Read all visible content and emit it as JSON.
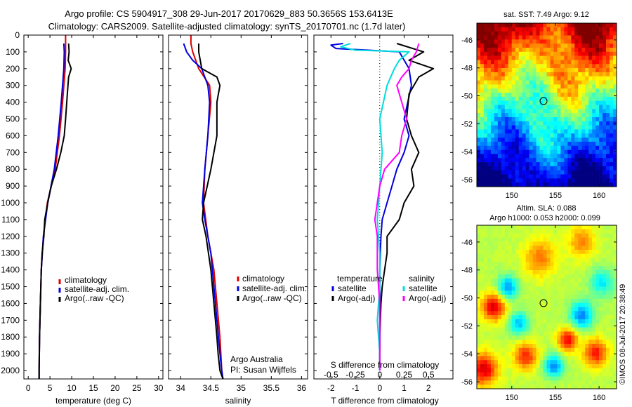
{
  "header": {
    "line1": "Argo profile: CS 5904917_308 29-Jun-2017 20170629_883 50.3656S 153.6413E",
    "line2": "Climatology: CARS2009. Satellite-adjusted climatology: synTS_20170701.nc (1.7d later)"
  },
  "colors": {
    "climatology": "#dd0000",
    "satellite": "#0000dd",
    "argo": "#000000",
    "argo_salinity": "#ff00ff",
    "satellite_salinity": "#00dddd"
  },
  "chart_data": [
    {
      "id": "temperature",
      "type": "line",
      "xlabel": "temperature (deg C)",
      "xlim": [
        -1,
        31
      ],
      "xticks": [
        0,
        5,
        10,
        15,
        20,
        25,
        30
      ],
      "ylim": [
        2050,
        0
      ],
      "yticks": [
        0,
        100,
        200,
        300,
        400,
        500,
        600,
        700,
        800,
        900,
        1000,
        1100,
        1200,
        1300,
        1400,
        1500,
        1600,
        1700,
        1800,
        1900,
        2000
      ],
      "legend": [
        "climatology",
        "satellite-adj. clim.",
        "Argo(..raw -QC)"
      ],
      "series": [
        {
          "name": "climatology",
          "color": "#dd0000",
          "points": [
            [
              8.6,
              0
            ],
            [
              8.6,
              100
            ],
            [
              8.5,
              200
            ],
            [
              7.9,
              400
            ],
            [
              7.2,
              600
            ],
            [
              6.2,
              800
            ],
            [
              4.4,
              1000
            ],
            [
              3.5,
              1200
            ],
            [
              3.0,
              1400
            ],
            [
              2.8,
              1600
            ],
            [
              2.6,
              1800
            ],
            [
              2.5,
              2000
            ],
            [
              2.5,
              2050
            ]
          ]
        },
        {
          "name": "satellite-adj. clim.",
          "color": "#0000dd",
          "points": [
            [
              8.2,
              50
            ],
            [
              8.3,
              100
            ],
            [
              8.2,
              200
            ],
            [
              7.6,
              400
            ],
            [
              6.9,
              600
            ],
            [
              6.0,
              800
            ],
            [
              4.5,
              1000
            ],
            [
              3.5,
              1200
            ],
            [
              3.0,
              1400
            ],
            [
              2.8,
              1600
            ],
            [
              2.6,
              1800
            ],
            [
              2.5,
              2000
            ],
            [
              2.5,
              2050
            ]
          ]
        },
        {
          "name": "Argo(..raw -QC)",
          "color": "#000000",
          "points": [
            [
              9.3,
              50
            ],
            [
              9.4,
              100
            ],
            [
              9.2,
              150
            ],
            [
              9.9,
              200
            ],
            [
              9.3,
              250
            ],
            [
              9.0,
              350
            ],
            [
              8.6,
              500
            ],
            [
              8.3,
              600
            ],
            [
              7.5,
              700
            ],
            [
              6.5,
              800
            ],
            [
              5.3,
              900
            ],
            [
              4.5,
              1000
            ],
            [
              3.8,
              1100
            ],
            [
              3.6,
              1200
            ],
            [
              3.2,
              1300
            ],
            [
              3.0,
              1400
            ],
            [
              2.8,
              1600
            ],
            [
              2.6,
              1800
            ],
            [
              2.5,
              2000
            ],
            [
              2.5,
              2050
            ]
          ]
        }
      ]
    },
    {
      "id": "salinity",
      "type": "line",
      "xlabel": "salinity",
      "xlim": [
        33.8,
        36.1
      ],
      "xticks": [
        34,
        34.5,
        35,
        35.5,
        36
      ],
      "xtick_labels": [
        "34",
        "34.5",
        "35",
        "35.5",
        "36"
      ],
      "ylim": [
        2050,
        0
      ],
      "legend": [
        "climatology",
        "satellite-adj. clim.",
        "Argo(..raw -QC)"
      ],
      "annotation": [
        "Argo Australia",
        "PI: Susan Wijffels"
      ],
      "series": [
        {
          "name": "climatology",
          "color": "#dd0000",
          "points": [
            [
              34.17,
              0
            ],
            [
              34.17,
              50
            ],
            [
              34.2,
              100
            ],
            [
              34.3,
              200
            ],
            [
              34.48,
              300
            ],
            [
              34.5,
              400
            ],
            [
              34.45,
              600
            ],
            [
              34.4,
              800
            ],
            [
              34.38,
              1000
            ],
            [
              34.45,
              1200
            ],
            [
              34.55,
              1400
            ],
            [
              34.6,
              1600
            ],
            [
              34.65,
              1800
            ],
            [
              34.68,
              2000
            ],
            [
              34.7,
              2050
            ]
          ]
        },
        {
          "name": "satellite-adj. clim.",
          "color": "#0000dd",
          "points": [
            [
              34.05,
              50
            ],
            [
              34.1,
              100
            ],
            [
              34.2,
              150
            ],
            [
              34.35,
              200
            ],
            [
              34.45,
              300
            ],
            [
              34.48,
              400
            ],
            [
              34.45,
              600
            ],
            [
              34.4,
              800
            ],
            [
              34.36,
              1000
            ],
            [
              34.4,
              1100
            ],
            [
              34.5,
              1300
            ],
            [
              34.55,
              1500
            ],
            [
              34.6,
              1700
            ],
            [
              34.65,
              1900
            ],
            [
              34.68,
              2000
            ],
            [
              34.7,
              2050
            ]
          ]
        },
        {
          "name": "Argo(..raw -QC)",
          "color": "#000000",
          "points": [
            [
              34.3,
              50
            ],
            [
              34.3,
              100
            ],
            [
              34.35,
              200
            ],
            [
              34.45,
              220
            ],
            [
              34.6,
              250
            ],
            [
              34.65,
              300
            ],
            [
              34.6,
              400
            ],
            [
              34.6,
              600
            ],
            [
              34.55,
              700
            ],
            [
              34.5,
              800
            ],
            [
              34.38,
              1000
            ],
            [
              34.36,
              1100
            ],
            [
              34.42,
              1200
            ],
            [
              34.5,
              1400
            ],
            [
              34.55,
              1600
            ],
            [
              34.6,
              1800
            ],
            [
              34.62,
              1900
            ],
            [
              34.65,
              2000
            ],
            [
              34.7,
              2050
            ]
          ]
        }
      ]
    },
    {
      "id": "difference",
      "type": "line",
      "xlabel": "T difference from climatology",
      "xlabel_top": "S difference from climatology",
      "xlim": [
        -2.7,
        3.0
      ],
      "xticks": [
        -2,
        -1,
        0,
        1,
        2
      ],
      "xticks_s": [
        -0.5,
        -0.25,
        0,
        0.25,
        0.5
      ],
      "xticks_s_labels": [
        "-0.5",
        "-0.25",
        "0",
        "0.25",
        "0.5"
      ],
      "s_scale": 4,
      "ylim": [
        2050,
        0
      ],
      "legend_left_title": "temperature",
      "legend_right_title": "salinity",
      "legend_left": [
        "satellite",
        "Argo(-adj)"
      ],
      "legend_right": [
        "satellite",
        "Argo(-adj)"
      ],
      "series": [
        {
          "name": "temperature satellite",
          "color": "#0000dd",
          "points": [
            [
              -1.5,
              50
            ],
            [
              -2.0,
              60
            ],
            [
              -1.8,
              80
            ],
            [
              0.8,
              100
            ],
            [
              1.2,
              200
            ],
            [
              1.3,
              300
            ],
            [
              1.0,
              500
            ],
            [
              1.2,
              600
            ],
            [
              1.0,
              700
            ],
            [
              0.7,
              800
            ],
            [
              0.5,
              900
            ],
            [
              0.3,
              1000
            ],
            [
              0.1,
              1100
            ],
            [
              0.05,
              1200
            ],
            [
              0,
              1400
            ],
            [
              0,
              1600
            ],
            [
              0,
              1800
            ],
            [
              0,
              2000
            ]
          ]
        },
        {
          "name": "temperature Argo(-adj)",
          "color": "#000000",
          "points": [
            [
              0.7,
              50
            ],
            [
              1.8,
              100
            ],
            [
              1.2,
              150
            ],
            [
              2.2,
              200
            ],
            [
              1.6,
              250
            ],
            [
              1.2,
              350
            ],
            [
              1.1,
              500
            ],
            [
              1.3,
              600
            ],
            [
              1.6,
              700
            ],
            [
              1.3,
              800
            ],
            [
              1.4,
              900
            ],
            [
              1.0,
              1000
            ],
            [
              0.8,
              1100
            ],
            [
              0.3,
              1200
            ],
            [
              0.3,
              1300
            ],
            [
              0.2,
              1400
            ],
            [
              0.1,
              1500
            ],
            [
              0.05,
              1600
            ],
            [
              0,
              1800
            ],
            [
              0,
              2000
            ]
          ]
        },
        {
          "name": "salinity satellite",
          "color": "#00dddd",
          "points": [
            [
              -1.2,
              50
            ],
            [
              -1.6,
              70
            ],
            [
              -1.0,
              90
            ],
            [
              1.2,
              100
            ],
            [
              0.8,
              150
            ],
            [
              0.6,
              200
            ],
            [
              0.3,
              300
            ],
            [
              0.0,
              500
            ],
            [
              0.1,
              700
            ],
            [
              0.0,
              900
            ],
            [
              -0.1,
              1100
            ],
            [
              0,
              1300
            ],
            [
              0,
              1500
            ],
            [
              -0.1,
              1700
            ],
            [
              0,
              1900
            ],
            [
              0,
              2000
            ]
          ]
        },
        {
          "name": "salinity Argo(-adj)",
          "color": "#ff00ff",
          "points": [
            [
              1.6,
              50
            ],
            [
              1.5,
              100
            ],
            [
              1.3,
              150
            ],
            [
              1.2,
              200
            ],
            [
              0.9,
              250
            ],
            [
              0.7,
              300
            ],
            [
              0.9,
              400
            ],
            [
              1.1,
              500
            ],
            [
              0.9,
              600
            ],
            [
              0.8,
              700
            ],
            [
              0.2,
              800
            ],
            [
              0.0,
              900
            ],
            [
              -0.1,
              1000
            ],
            [
              -0.2,
              1100
            ],
            [
              -0.1,
              1200
            ],
            [
              -0.1,
              1400
            ],
            [
              0,
              1600
            ],
            [
              0,
              1800
            ],
            [
              0,
              2000
            ]
          ]
        }
      ]
    },
    {
      "id": "sst-map",
      "type": "heatmap",
      "title": "sat. SST: 7.49  Argo: 9.12",
      "xlim": [
        146,
        162
      ],
      "ylim": [
        -56.5,
        -44.8
      ],
      "xticks": [
        150,
        155,
        160
      ],
      "yticks": [
        -46,
        -48,
        -50,
        -52,
        -54,
        -56
      ],
      "marker": {
        "lon": 153.64,
        "lat": -50.37
      }
    },
    {
      "id": "sla-map",
      "type": "heatmap",
      "title": "Altim. SLA: 0.088",
      "subtitle": "Argo h1000: 0.053  h2000: 0.099",
      "xlim": [
        146,
        162
      ],
      "ylim": [
        -56.5,
        -44.8
      ],
      "xticks": [
        150,
        155,
        160
      ],
      "yticks": [
        -46,
        -48,
        -50,
        -52,
        -54,
        -56
      ],
      "marker": {
        "lon": 153.64,
        "lat": -50.37
      }
    }
  ],
  "footer": {
    "credit": "©IMOS 08-Jul-2017 20:38:49"
  }
}
